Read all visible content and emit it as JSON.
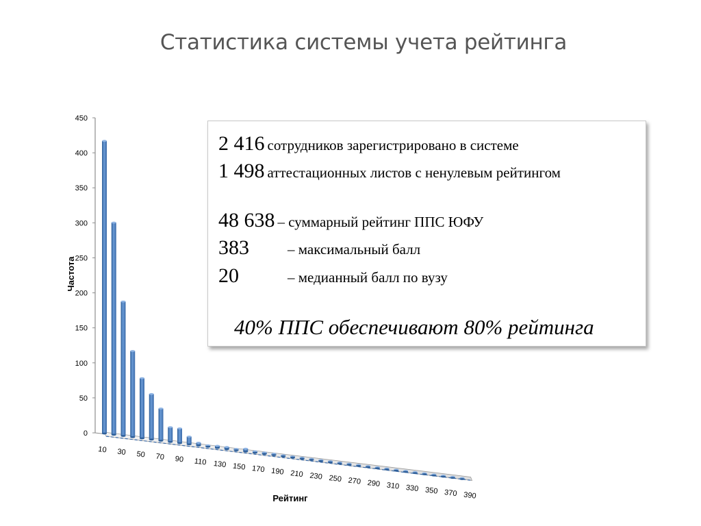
{
  "title": "Статистика системы учета рейтинга",
  "info": {
    "line1_num": "2 416",
    "line1_text": "сотрудников зарегистрировано в системе",
    "line2_num": "1 498",
    "line2_text": "аттестационных листов с ненулевым рейтингом",
    "line3_num": "48 638",
    "line3_text": "– суммарный рейтинг ППС ЮФУ",
    "line4_num": "383",
    "line4_text": "– максимальный балл",
    "line5_num": "20",
    "line5_text": "– медианный балл по вузу",
    "highlight": "40% ППС обеспечивают 80% рейтинга"
  },
  "chart_data": {
    "type": "bar",
    "title": "",
    "xlabel": "Рейтинг",
    "ylabel": "Частота",
    "ylim": [
      0,
      450
    ],
    "yticks": [
      0,
      50,
      100,
      150,
      200,
      250,
      300,
      350,
      400,
      450
    ],
    "x": [
      10,
      20,
      30,
      40,
      50,
      60,
      70,
      80,
      90,
      100,
      110,
      120,
      130,
      140,
      150,
      160,
      170,
      180,
      190,
      200,
      210,
      220,
      230,
      240,
      250,
      260,
      270,
      280,
      290,
      300,
      310,
      320,
      330,
      340,
      350,
      360,
      370,
      380,
      390
    ],
    "xtick_labels": [
      10,
      30,
      50,
      70,
      90,
      110,
      130,
      150,
      170,
      190,
      210,
      230,
      250,
      270,
      290,
      310,
      330,
      350,
      370,
      390
    ],
    "values": [
      418,
      303,
      192,
      123,
      86,
      65,
      46,
      21,
      21,
      11,
      4,
      2,
      3,
      3,
      2,
      4,
      2,
      2,
      2,
      1,
      1,
      1,
      1,
      0,
      0,
      0,
      0,
      0,
      0,
      0,
      0,
      0,
      0,
      0,
      0,
      0,
      0,
      0,
      0
    ],
    "bar_color": "#4a7ebb",
    "grid": false,
    "style": "3d"
  }
}
